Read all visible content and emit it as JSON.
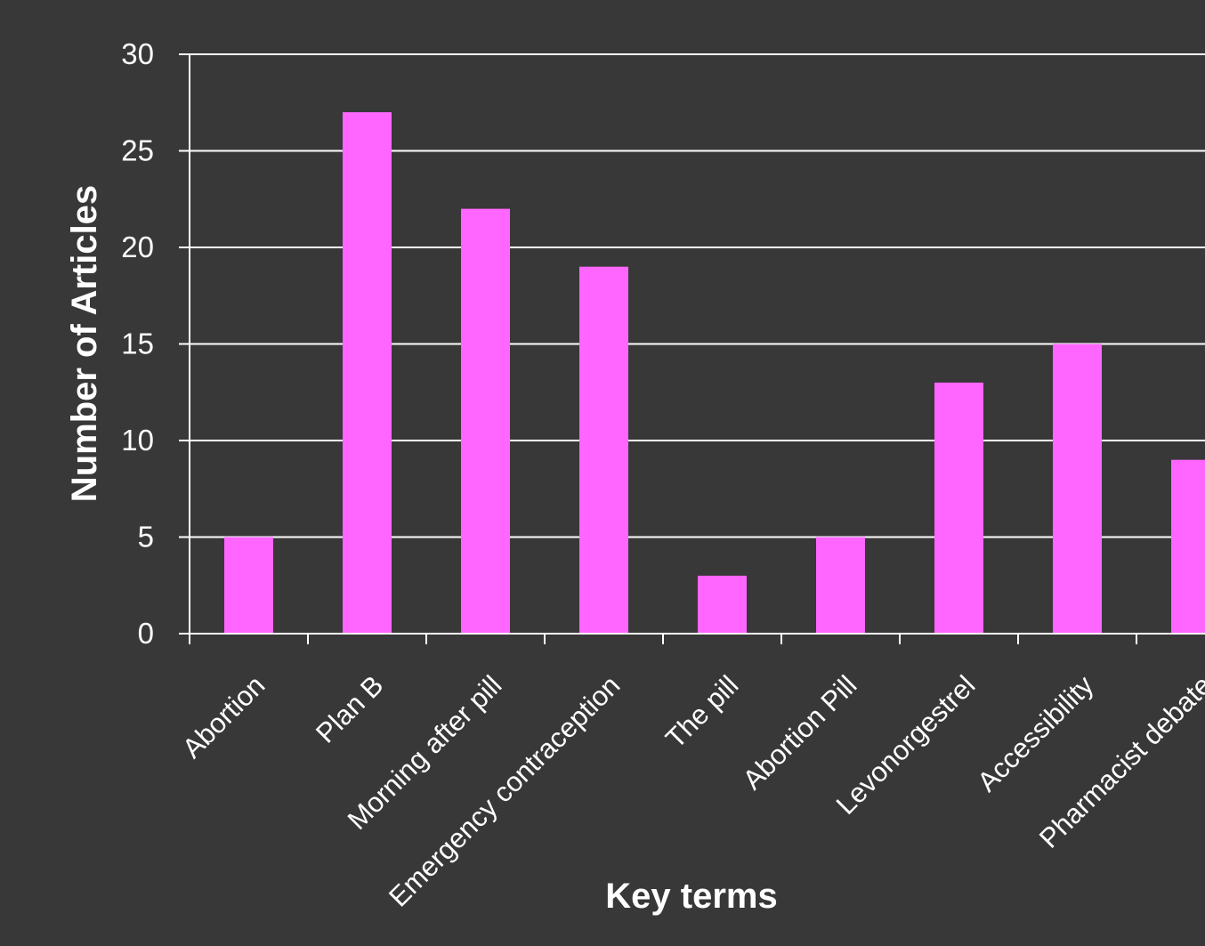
{
  "chart_data": {
    "type": "bar",
    "title": "",
    "xlabel": "Key terms",
    "ylabel": "Number of Articles",
    "categories": [
      "Abortion",
      "Plan B",
      "Morning after pill",
      "Emergency contraception",
      "The pill",
      "Abortion Pill",
      "Levonorgestrel",
      "Accessibility",
      "Pharmacist debate"
    ],
    "values": [
      5,
      27,
      22,
      19,
      3,
      5,
      13,
      15,
      9
    ],
    "ylim": [
      0,
      30
    ],
    "yticks": [
      0,
      5,
      10,
      15,
      20,
      25,
      30
    ],
    "grid": true,
    "colors": {
      "background": "#383838",
      "bar": "#ff66ff",
      "grid": "#ffffff",
      "text": "#ffffff"
    }
  }
}
